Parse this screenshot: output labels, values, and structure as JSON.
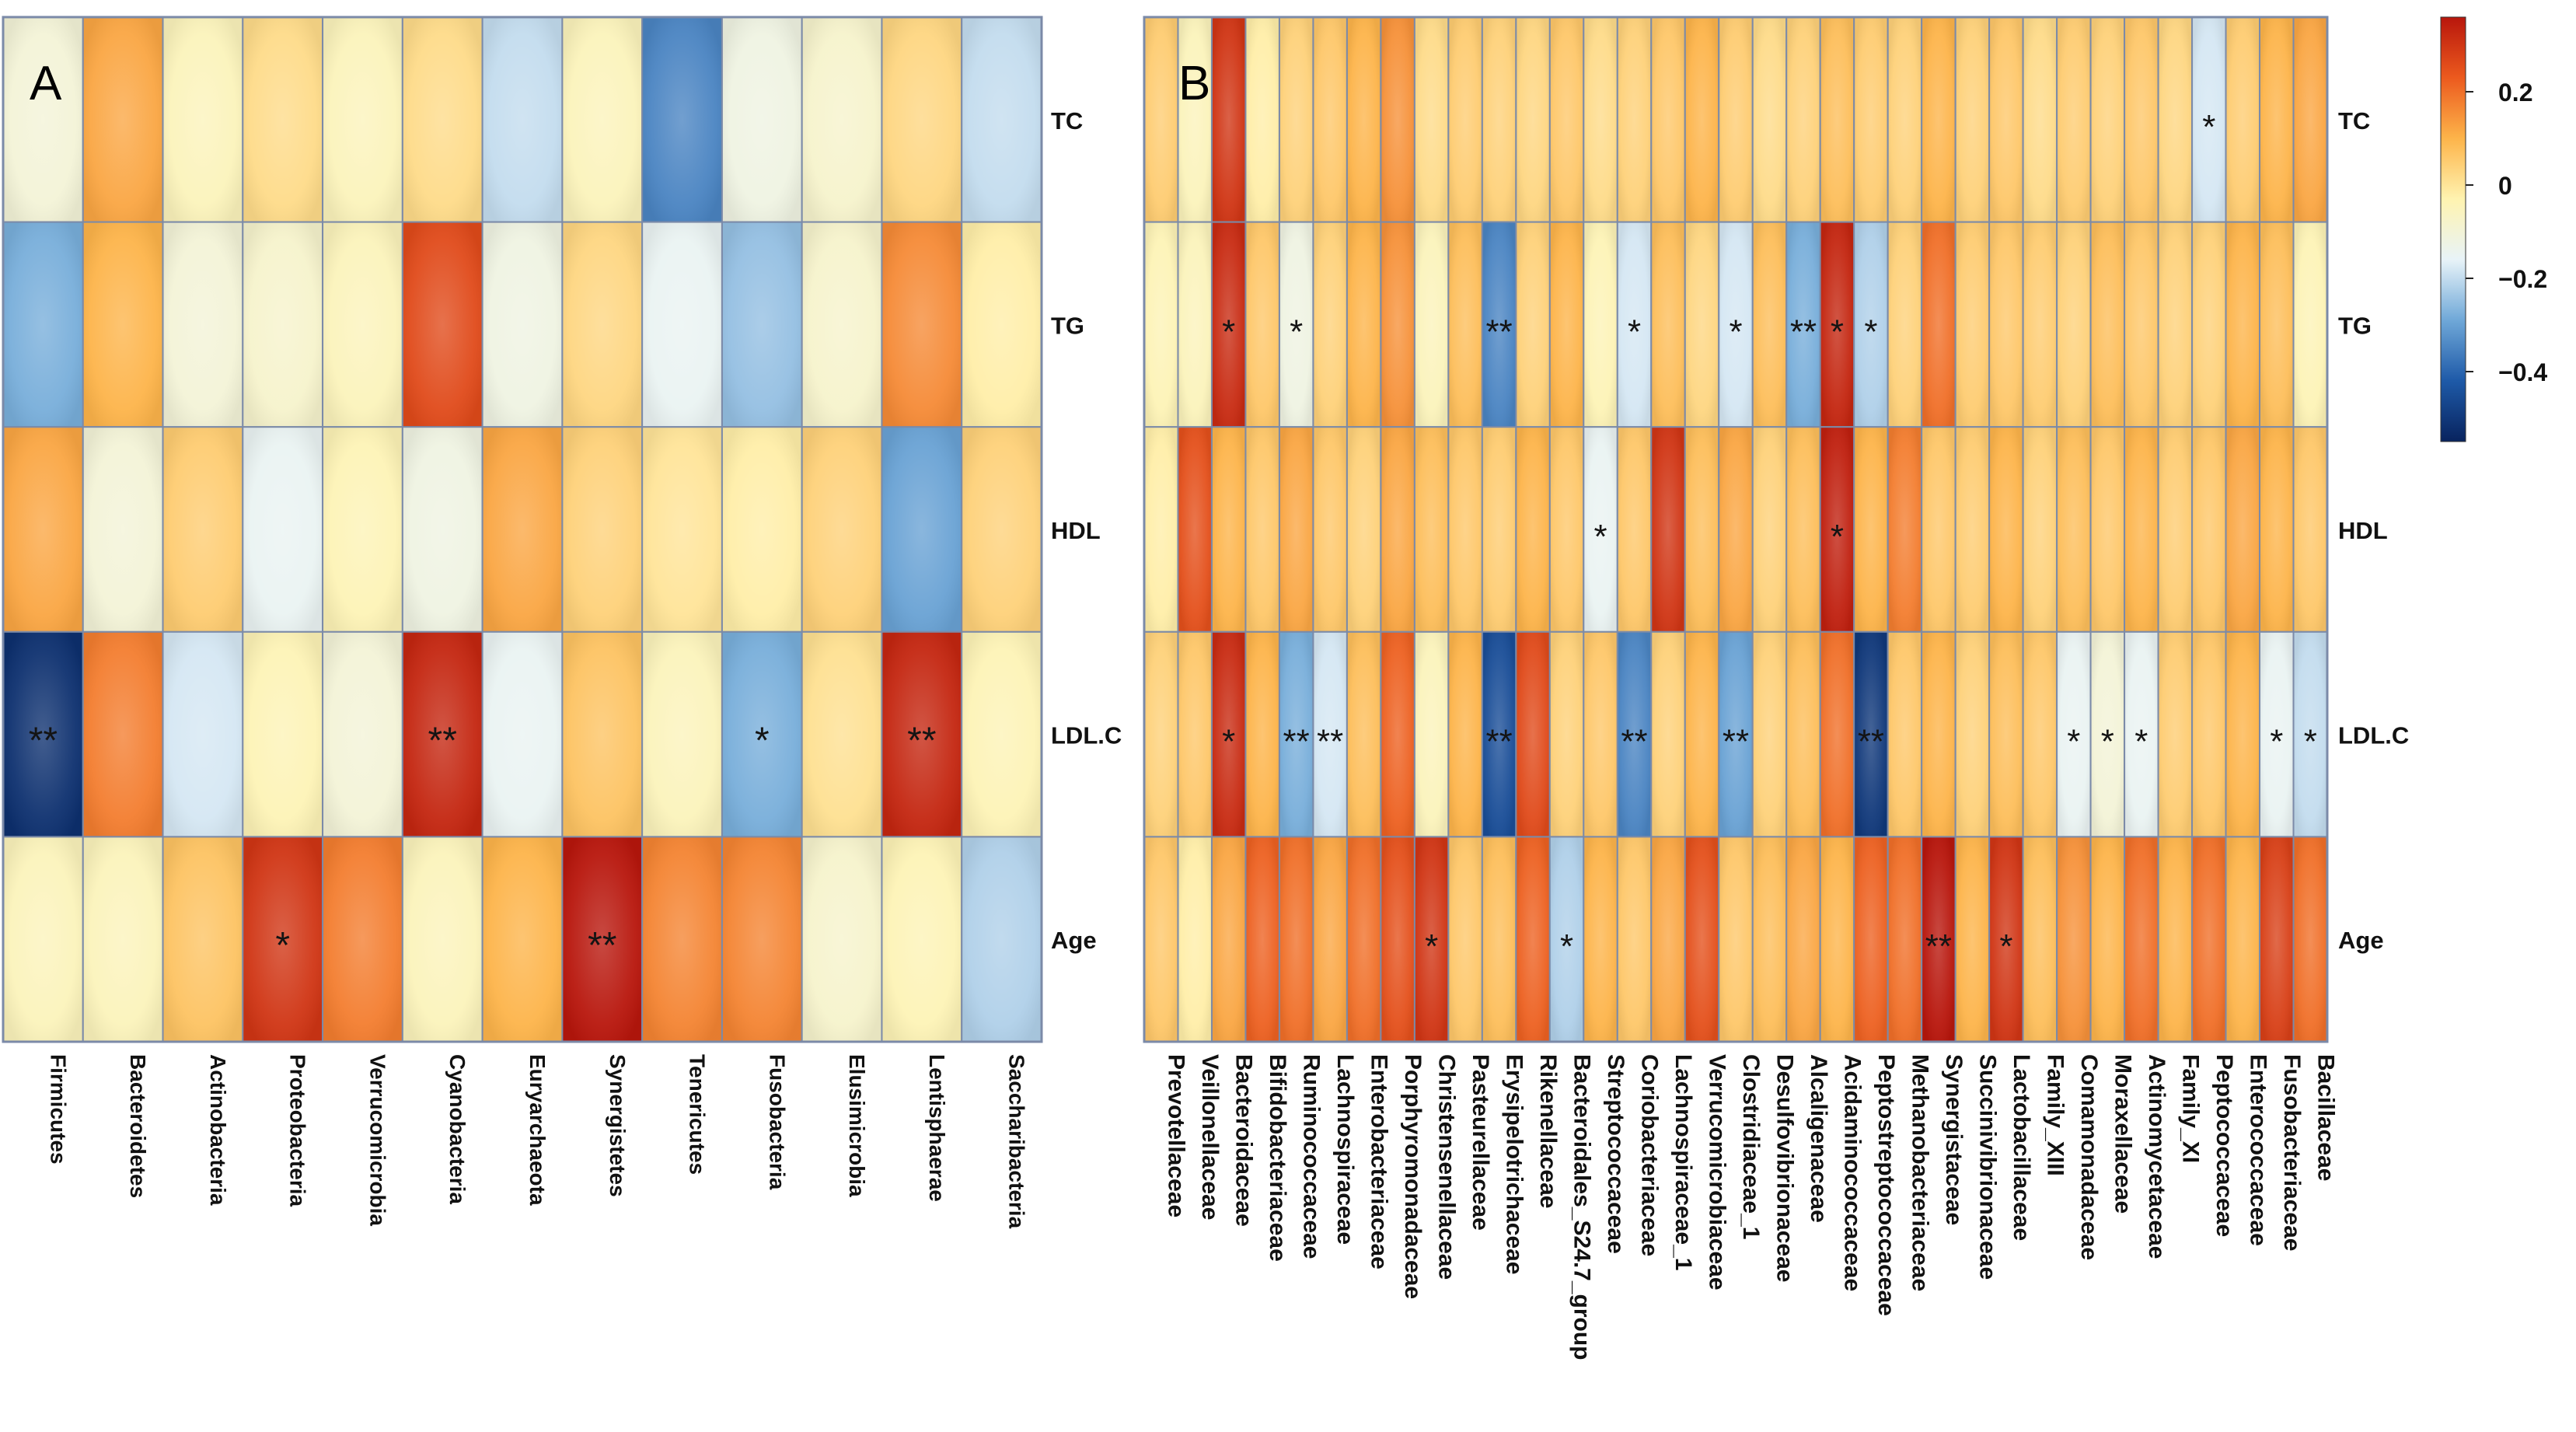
{
  "chart_data": [
    {
      "type": "heatmap",
      "panel_label": "A",
      "rows": [
        "TC",
        "TG",
        "HDL",
        "LDL.C",
        "Age"
      ],
      "columns": [
        "Firmicutes",
        "Bacteroidetes",
        "Actinobacteria",
        "Proteobacteria",
        "Verrucomicrobia",
        "Cyanobacteria",
        "Euryarchaeota",
        "Synergistetes",
        "Tenericutes",
        "Fusobacteria",
        "Elusimicrobia",
        "Lentisphaerae",
        "Saccharibacteria"
      ],
      "values": [
        [
          -0.1,
          0.12,
          -0.05,
          0.02,
          -0.05,
          0.02,
          -0.2,
          -0.05,
          -0.35,
          -0.12,
          -0.08,
          0.03,
          -0.2
        ],
        [
          -0.28,
          0.1,
          -0.1,
          -0.08,
          -0.05,
          0.26,
          -0.12,
          0.03,
          -0.15,
          -0.25,
          -0.08,
          0.16,
          -0.02
        ],
        [
          0.12,
          -0.1,
          0.05,
          -0.15,
          -0.04,
          -0.12,
          0.12,
          0.04,
          0.0,
          -0.02,
          0.04,
          -0.3,
          0.04
        ],
        [
          -0.52,
          0.18,
          -0.18,
          -0.04,
          -0.1,
          0.33,
          -0.15,
          0.07,
          -0.05,
          -0.28,
          0.01,
          0.33,
          -0.04
        ],
        [
          -0.05,
          -0.05,
          0.07,
          0.3,
          0.18,
          -0.05,
          0.1,
          0.36,
          0.17,
          0.17,
          -0.08,
          -0.04,
          -0.22
        ]
      ],
      "significance": [
        [
          "",
          "",
          "",
          "",
          "",
          "",
          "",
          "",
          "",
          "",
          "",
          "",
          ""
        ],
        [
          "",
          "",
          "",
          "",
          "",
          "",
          "",
          "",
          "",
          "",
          "",
          "",
          ""
        ],
        [
          "",
          "",
          "",
          "",
          "",
          "",
          "",
          "",
          "",
          "",
          "",
          "",
          ""
        ],
        [
          "**",
          "",
          "",
          "",
          "",
          "**",
          "",
          "",
          "",
          "*",
          "",
          "**",
          ""
        ],
        [
          "",
          "",
          "",
          "*",
          "",
          "",
          "",
          "**",
          "",
          "",
          "",
          "",
          ""
        ]
      ]
    },
    {
      "type": "heatmap",
      "panel_label": "B",
      "rows": [
        "TC",
        "TG",
        "HDL",
        "LDL.C",
        "Age"
      ],
      "columns": [
        "Prevotellaceae",
        "Veillonellaceae",
        "Bacteroidaceae",
        "Bifidobacteriaceae",
        "Ruminococcaceae",
        "Lachnospiraceae",
        "Enterobacteriaceae",
        "Porphyromonadaceae",
        "Christensenellaceae",
        "Pasteurellaceae",
        "Erysipelotrichaceae",
        "Rikenellaceae",
        "Bacteroidales_S24.7_group",
        "Streptococcaceae",
        "Coriobacteriaceae",
        "Lachnospiraceae_1",
        "Verrucomicrobiaceae",
        "Clostridiaceae_1",
        "Desulfovibrionaceae",
        "Alcaligenaceae",
        "Acidaminococcaceae",
        "Peptostreptococcaceae",
        "Methanobacteriaceae",
        "Synergistaceae",
        "Succinivibrionaceae",
        "Lactobacillaceae",
        "Family_XIII",
        "Comamonadaceae",
        "Moraxellaceae",
        "Actinomycetaceae",
        "Family_XI",
        "Peptococcaceae",
        "Enterococcaceae",
        "Fusobacteriaceae",
        "Bacillaceae"
      ],
      "values": [
        [
          0.05,
          -0.05,
          0.3,
          -0.02,
          0.04,
          0.06,
          0.1,
          0.15,
          0.02,
          0.05,
          0.04,
          0.03,
          0.06,
          0.02,
          0.04,
          0.06,
          0.1,
          0.05,
          0.02,
          0.04,
          0.08,
          0.05,
          0.04,
          0.1,
          0.04,
          0.06,
          0.02,
          0.05,
          0.04,
          0.06,
          0.03,
          -0.18,
          0.05,
          0.1,
          0.12
        ],
        [
          -0.04,
          -0.05,
          0.32,
          0.06,
          -0.12,
          0.04,
          0.1,
          0.15,
          -0.05,
          0.08,
          -0.35,
          0.04,
          0.1,
          -0.04,
          -0.18,
          0.08,
          0.03,
          -0.18,
          0.08,
          -0.28,
          0.33,
          -0.22,
          0.04,
          0.2,
          0.05,
          0.06,
          0.05,
          0.04,
          0.08,
          0.06,
          0.04,
          0.04,
          0.1,
          0.08,
          -0.04
        ],
        [
          -0.02,
          0.25,
          0.1,
          0.06,
          0.12,
          0.06,
          0.04,
          0.12,
          0.08,
          0.06,
          0.05,
          0.1,
          0.06,
          -0.15,
          0.06,
          0.3,
          0.08,
          0.12,
          0.04,
          0.08,
          0.34,
          0.1,
          0.18,
          0.06,
          0.05,
          0.1,
          0.04,
          0.08,
          0.06,
          0.1,
          0.05,
          0.06,
          0.12,
          0.1,
          0.06
        ],
        [
          0.04,
          0.06,
          0.32,
          0.1,
          -0.28,
          -0.18,
          0.08,
          0.22,
          -0.05,
          0.1,
          -0.45,
          0.26,
          0.04,
          0.06,
          -0.35,
          0.04,
          0.1,
          -0.3,
          0.04,
          0.08,
          0.2,
          -0.5,
          0.06,
          0.1,
          0.04,
          0.08,
          0.06,
          -0.15,
          -0.1,
          -0.15,
          0.05,
          0.06,
          0.1,
          -0.15,
          -0.2
        ],
        [
          0.06,
          -0.02,
          0.12,
          0.22,
          0.2,
          0.12,
          0.2,
          0.25,
          0.3,
          0.06,
          0.08,
          0.22,
          -0.22,
          0.1,
          0.06,
          0.12,
          0.25,
          0.06,
          0.08,
          0.12,
          0.1,
          0.22,
          0.2,
          0.36,
          0.1,
          0.3,
          0.08,
          0.15,
          0.1,
          0.2,
          0.1,
          0.2,
          0.1,
          0.28,
          0.2
        ]
      ],
      "significance": [
        [
          "",
          "",
          "",
          "",
          "",
          "",
          "",
          "",
          "",
          "",
          "",
          "",
          "",
          "",
          "",
          "",
          "",
          "",
          "",
          "",
          "",
          "",
          "",
          "",
          "",
          "",
          "",
          "",
          "",
          "",
          "",
          "*",
          "",
          "",
          ""
        ],
        [
          "",
          "",
          "*",
          "",
          "*",
          "",
          "",
          "",
          "",
          "",
          "**",
          "",
          "",
          "",
          "*",
          "",
          "",
          "*",
          "",
          "**",
          "*",
          "*",
          "",
          "",
          "",
          "",
          "",
          "",
          "",
          "",
          "",
          "",
          "",
          "",
          ""
        ],
        [
          "",
          "",
          "",
          "",
          "",
          "",
          "",
          "",
          "",
          "",
          "",
          "",
          "",
          "*",
          "",
          "",
          "",
          "",
          "",
          "",
          "*",
          "",
          "",
          "",
          "",
          "",
          "",
          "",
          "",
          "",
          "",
          "",
          "",
          "",
          ""
        ],
        [
          "",
          "",
          "*",
          "",
          "**",
          "**",
          "",
          "",
          "",
          "",
          "**",
          "",
          "",
          "",
          "**",
          "",
          "",
          "**",
          "",
          "",
          "",
          "**",
          "",
          "",
          "",
          "",
          "",
          "*",
          "*",
          "*",
          "",
          "",
          "",
          "*",
          "*"
        ],
        [
          "",
          "",
          "",
          "",
          "",
          "",
          "",
          "",
          "*",
          "",
          "",
          "",
          "*",
          "",
          "",
          "",
          "",
          "",
          "",
          "",
          "",
          "",
          "",
          "**",
          "",
          "*",
          "",
          "",
          "",
          "",
          "",
          "",
          "",
          "",
          ""
        ]
      ]
    }
  ],
  "colorbar": {
    "ticks": [
      {
        "value": 0.2,
        "label": "0.2"
      },
      {
        "value": 0,
        "label": "0"
      },
      {
        "value": -0.2,
        "label": "−0.2"
      },
      {
        "value": -0.4,
        "label": "−0.4"
      }
    ],
    "range": [
      -0.55,
      0.36
    ],
    "colors": [
      "#08235e",
      "#1e5aa8",
      "#6fa8d8",
      "#e8f3f8",
      "#fff3b0",
      "#fdb44a",
      "#ec5a1e",
      "#b8160c"
    ]
  }
}
